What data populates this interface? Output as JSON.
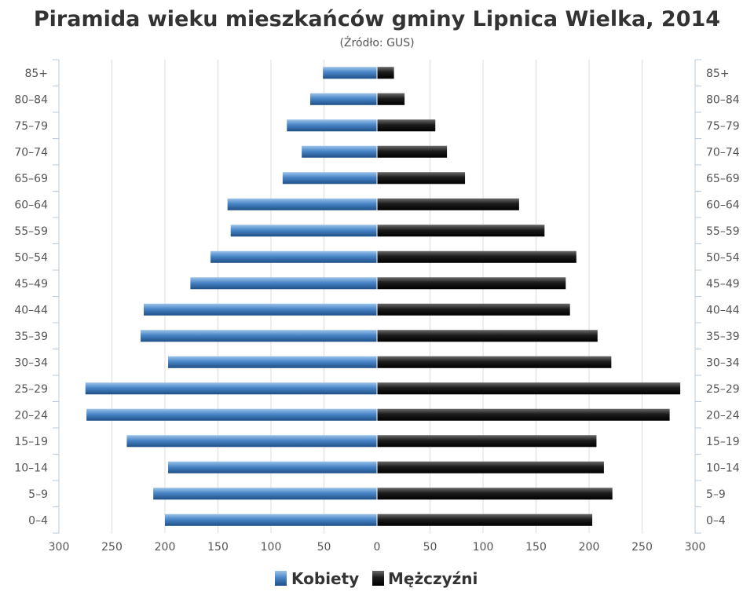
{
  "colors": {
    "female": "#3d7cc0",
    "male": "#1a1a1a",
    "grid": "#dcdcdc",
    "axis": "#b8c8d8"
  },
  "chart_data": {
    "type": "bar",
    "title": "Piramida wieku mieszkańców gminy Lipnica Wielka, 2014",
    "subtitle": "(Źródło: GUS)",
    "categories": [
      "85+",
      "80–84",
      "75–79",
      "70–74",
      "65–69",
      "60–64",
      "55–59",
      "50–54",
      "45–49",
      "40–44",
      "35–39",
      "30–34",
      "25–29",
      "20–24",
      "15–19",
      "10–14",
      "5–9",
      "0–4"
    ],
    "series": [
      {
        "name": "Kobiety",
        "values": [
          51,
          63,
          85,
          71,
          89,
          141,
          138,
          157,
          176,
          220,
          223,
          197,
          275,
          274,
          236,
          197,
          211,
          200
        ]
      },
      {
        "name": "Mężczyźni",
        "values": [
          16,
          26,
          55,
          66,
          83,
          134,
          158,
          188,
          178,
          182,
          208,
          221,
          286,
          276,
          207,
          214,
          222,
          203
        ]
      }
    ],
    "xlim": [
      -300,
      300
    ],
    "x_ticks": [
      -300,
      -250,
      -200,
      -150,
      -100,
      -50,
      0,
      50,
      100,
      150,
      200,
      250,
      300
    ],
    "x_tick_labels": [
      "300",
      "250",
      "200",
      "150",
      "100",
      "50",
      "0",
      "50",
      "100",
      "150",
      "200",
      "250",
      "300"
    ],
    "grid": true,
    "legend_position": "bottom"
  }
}
